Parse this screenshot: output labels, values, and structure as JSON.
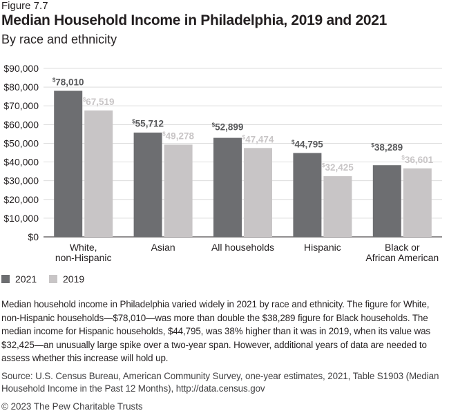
{
  "figure_label": "Figure 7.7",
  "chart_data": {
    "type": "bar",
    "title": "Median Household Income in Philadelphia, 2019 and 2021",
    "subtitle": "By race and ethnicity",
    "categories": [
      "White, non-Hispanic",
      "Asian",
      "All households",
      "Hispanic",
      "Black or African American"
    ],
    "category_lines": [
      [
        "White,",
        "non-Hispanic"
      ],
      [
        "Asian"
      ],
      [
        "All households"
      ],
      [
        "Hispanic"
      ],
      [
        "Black or",
        "African American"
      ]
    ],
    "series": [
      {
        "name": "2021",
        "color": "#6d6e71",
        "label_color": "#58595b",
        "values": [
          78010,
          55712,
          52899,
          44795,
          38289
        ],
        "labels": [
          "78,010",
          "55,712",
          "52,899",
          "44,795",
          "38,289"
        ]
      },
      {
        "name": "2019",
        "color": "#c8c5c6",
        "label_color": "#c8c5c6",
        "values": [
          67519,
          49278,
          47474,
          32425,
          36601
        ],
        "labels": [
          "67,519",
          "49,278",
          "47,474",
          "32,425",
          "36,601"
        ]
      }
    ],
    "ylim": [
      0,
      90000
    ],
    "yticks": [
      "$0",
      "$10,000",
      "$20,000",
      "$30,000",
      "$40,000",
      "$50,000",
      "$60,000",
      "$70,000",
      "$80,000",
      "$90,000"
    ],
    "grid": true,
    "legend_placement": "bottom-left"
  },
  "note": "Median household income in Philadelphia varied widely in 2021 by race and ethnicity. The figure for White, non-Hispanic households—$78,010—was more than double the $38,289 figure for Black households. The median income for Hispanic households, $44,795, was 38% higher than it was in 2019, when its value was $32,425—an unusually large spike over a two-year span. However, additional years of data are needed to assess whether this increase will hold up.",
  "source": "Source: U.S. Census Bureau, American Community Survey, one-year estimates, 2021, Table S1903 (Median Household Income in the Past 12 Months), http://data.census.gov",
  "copyright": "© 2023 The Pew Charitable Trusts"
}
